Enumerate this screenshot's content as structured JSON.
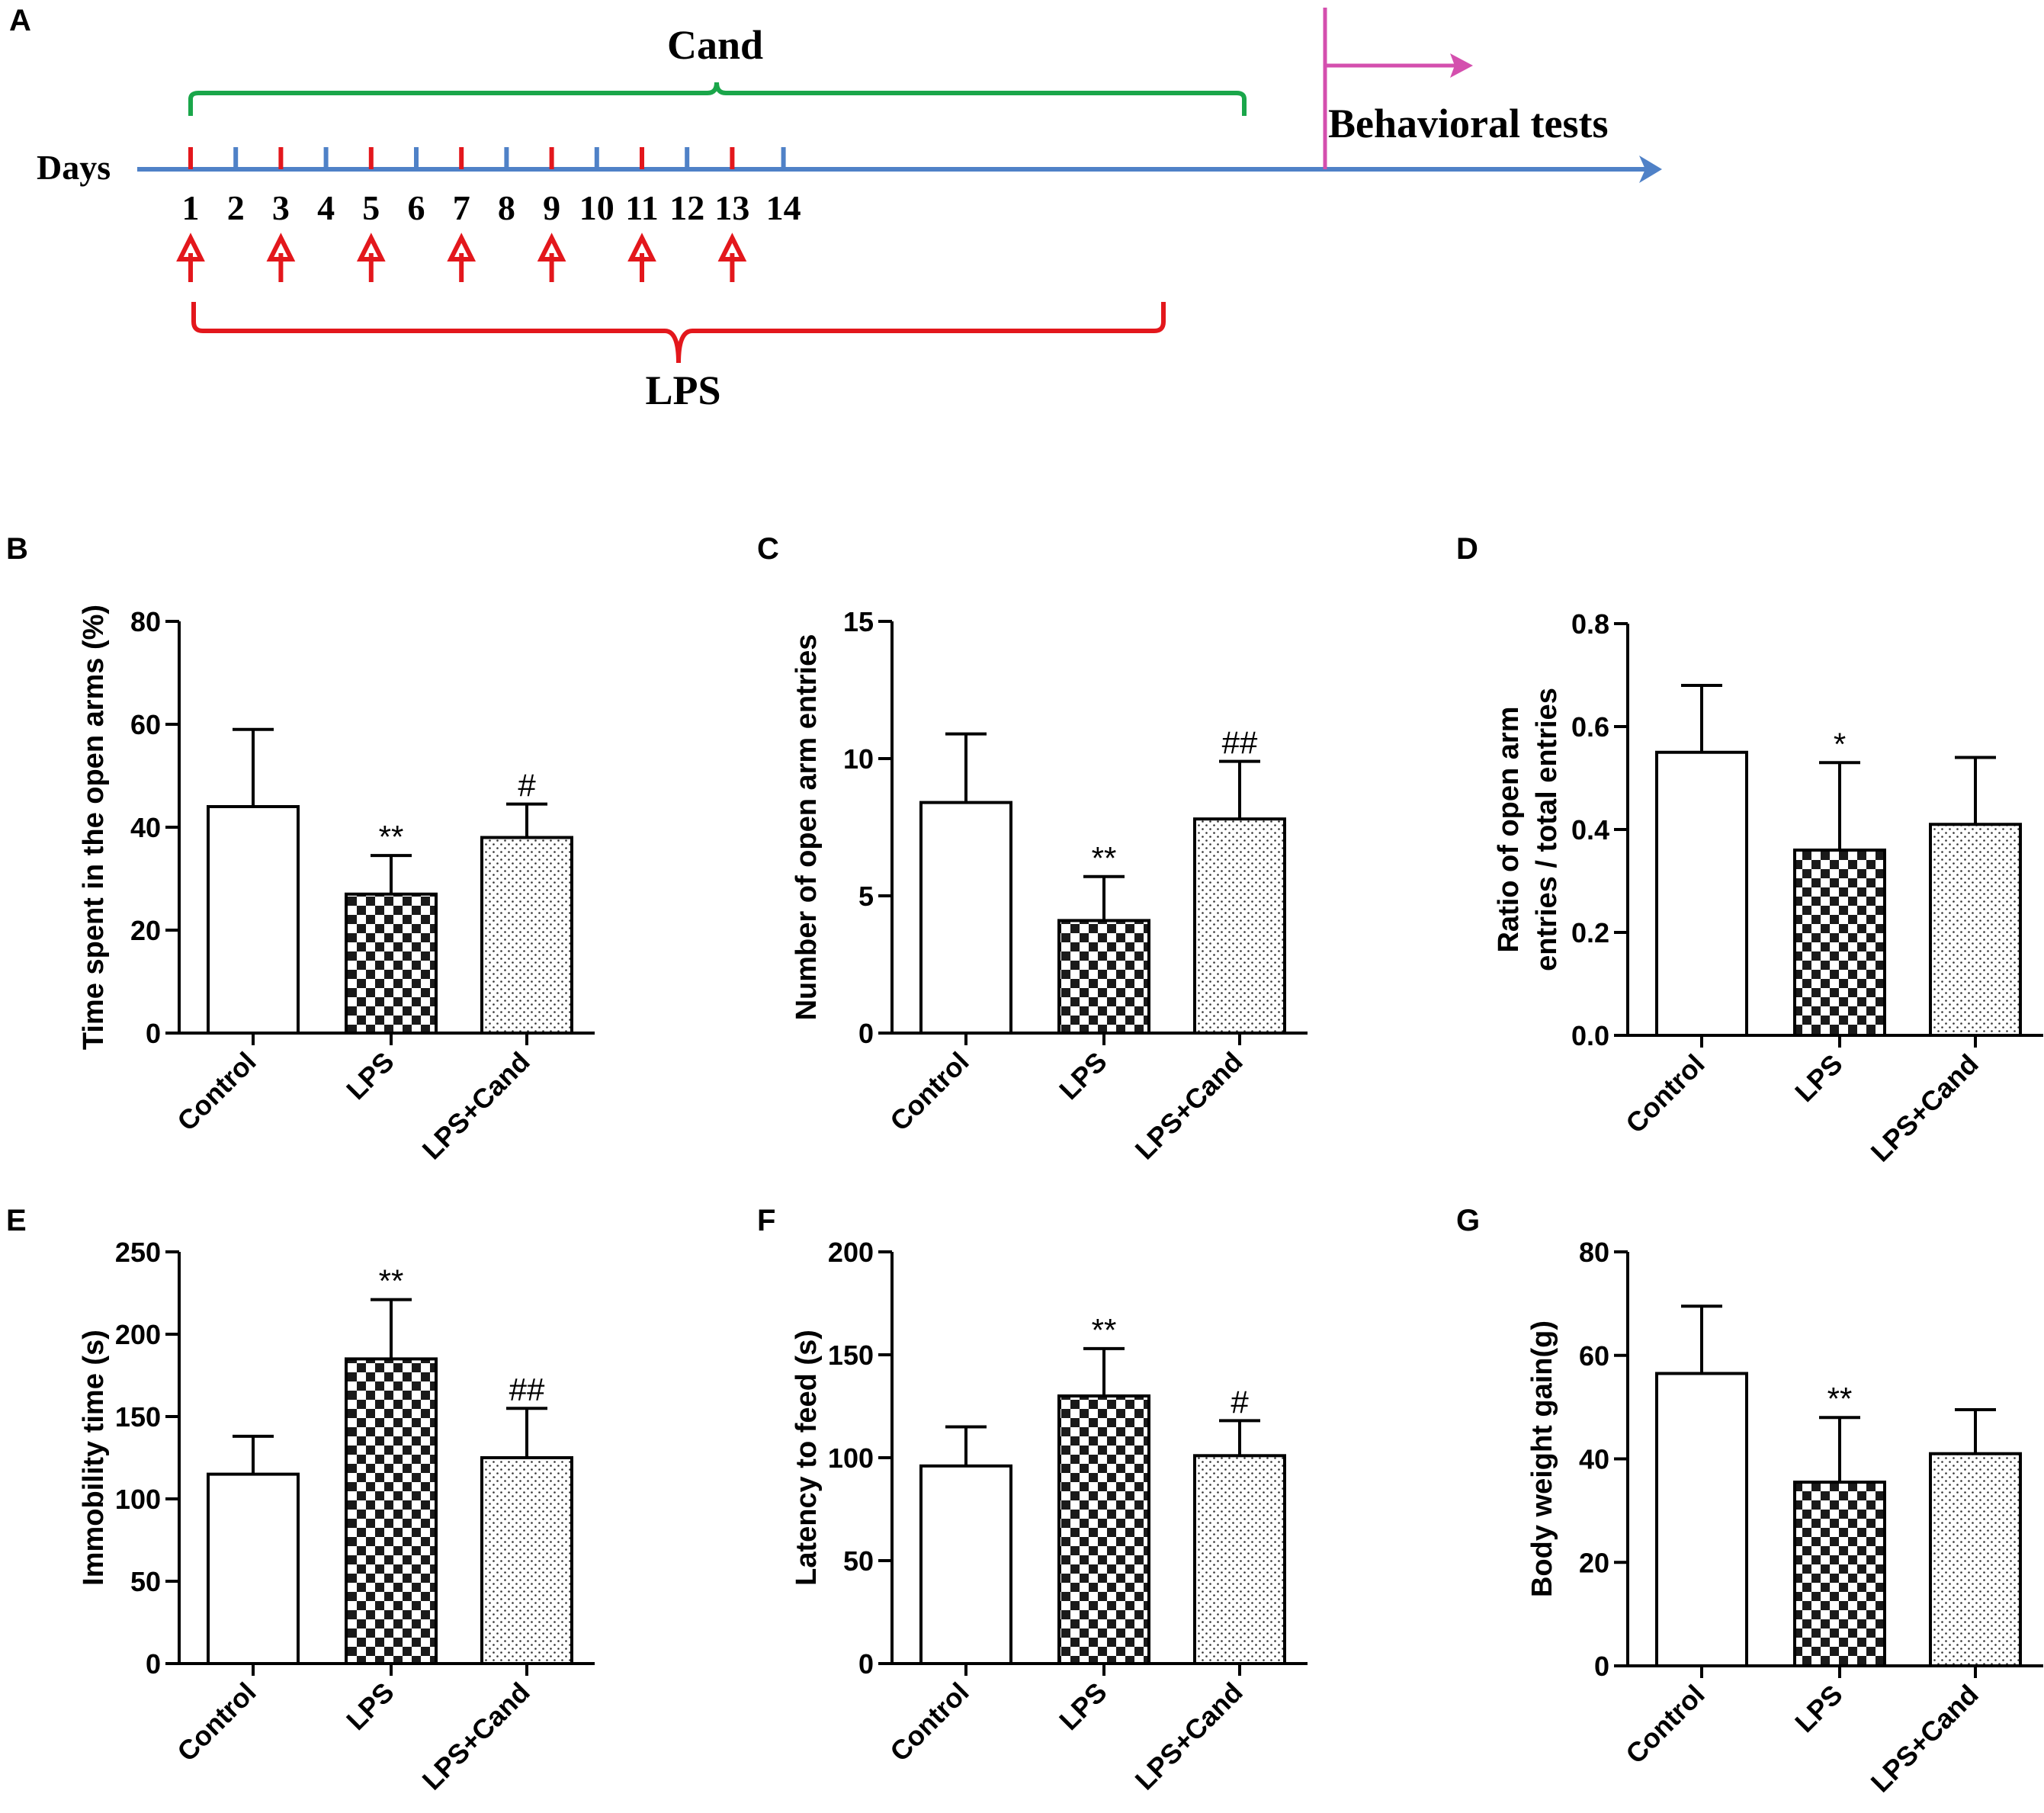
{
  "timeline": {
    "panel_label": "A",
    "axis_label": "Days",
    "days": [
      "1",
      "2",
      "3",
      "4",
      "5",
      "6",
      "7",
      "8",
      "9",
      "10",
      "11",
      "12",
      "13",
      "14"
    ],
    "lps_days": [
      "1",
      "3",
      "5",
      "7",
      "9",
      "11",
      "13"
    ],
    "cand_label": "Cand",
    "lps_label": "LPS",
    "behavior_label": "Behavioral tests",
    "colors": {
      "axis": "#4f81c7",
      "cand": "#1aa64a",
      "lps": "#e3171c",
      "behavior": "#d44fae"
    }
  },
  "chart_data": [
    {
      "panel": "B",
      "type": "bar",
      "categories": [
        "Control",
        "LPS",
        "LPS+Cand"
      ],
      "values": [
        44,
        27,
        38
      ],
      "errors": [
        15,
        7.5,
        6.5
      ],
      "annotations": [
        "",
        "**",
        "#"
      ],
      "ylabel": [
        "Time spent in the open arms (%)"
      ],
      "ylim": [
        0,
        80
      ],
      "yticks": [
        "0",
        "20",
        "40",
        "60",
        "80"
      ]
    },
    {
      "panel": "C",
      "type": "bar",
      "categories": [
        "Control",
        "LPS",
        "LPS+Cand"
      ],
      "values": [
        8.4,
        4.1,
        7.8
      ],
      "errors": [
        2.5,
        1.6,
        2.1
      ],
      "annotations": [
        "",
        "**",
        "##"
      ],
      "ylabel": [
        "Number of open arm entries"
      ],
      "ylim": [
        0,
        15
      ],
      "yticks": [
        "0",
        "5",
        "10",
        "15"
      ]
    },
    {
      "panel": "D",
      "type": "bar",
      "categories": [
        "Control",
        "LPS",
        "LPS+Cand"
      ],
      "values": [
        0.55,
        0.36,
        0.41
      ],
      "errors": [
        0.13,
        0.17,
        0.13
      ],
      "annotations": [
        "",
        "*",
        ""
      ],
      "ylabel": [
        "Ratio of open arm",
        "entries / total entries"
      ],
      "ylim": [
        0,
        0.8
      ],
      "yticks": [
        "0.0",
        "0.2",
        "0.4",
        "0.6",
        "0.8"
      ]
    },
    {
      "panel": "E",
      "type": "bar",
      "categories": [
        "Control",
        "LPS",
        "LPS+Cand"
      ],
      "values": [
        115,
        185,
        125
      ],
      "errors": [
        23,
        36,
        30
      ],
      "annotations": [
        "",
        "**",
        "##"
      ],
      "ylabel": [
        "Immobility time (s)"
      ],
      "ylim": [
        0,
        250
      ],
      "yticks": [
        "0",
        "50",
        "100",
        "150",
        "200",
        "250"
      ]
    },
    {
      "panel": "F",
      "type": "bar",
      "categories": [
        "Control",
        "LPS",
        "LPS+Cand"
      ],
      "values": [
        96,
        130,
        101
      ],
      "errors": [
        19,
        23,
        17
      ],
      "annotations": [
        "",
        "**",
        "#"
      ],
      "ylabel": [
        "Latency to feed (s)"
      ],
      "ylim": [
        0,
        200
      ],
      "yticks": [
        "0",
        "50",
        "100",
        "150",
        "200"
      ]
    },
    {
      "panel": "G",
      "type": "bar",
      "categories": [
        "Control",
        "LPS",
        "LPS+Cand"
      ],
      "values": [
        56.5,
        35.5,
        41
      ],
      "errors": [
        13,
        12.5,
        8.5
      ],
      "annotations": [
        "",
        "**",
        ""
      ],
      "ylabel": [
        "Body weight gain(g)"
      ],
      "ylim": [
        0,
        80
      ],
      "yticks": [
        "0",
        "20",
        "40",
        "60",
        "80"
      ]
    }
  ]
}
